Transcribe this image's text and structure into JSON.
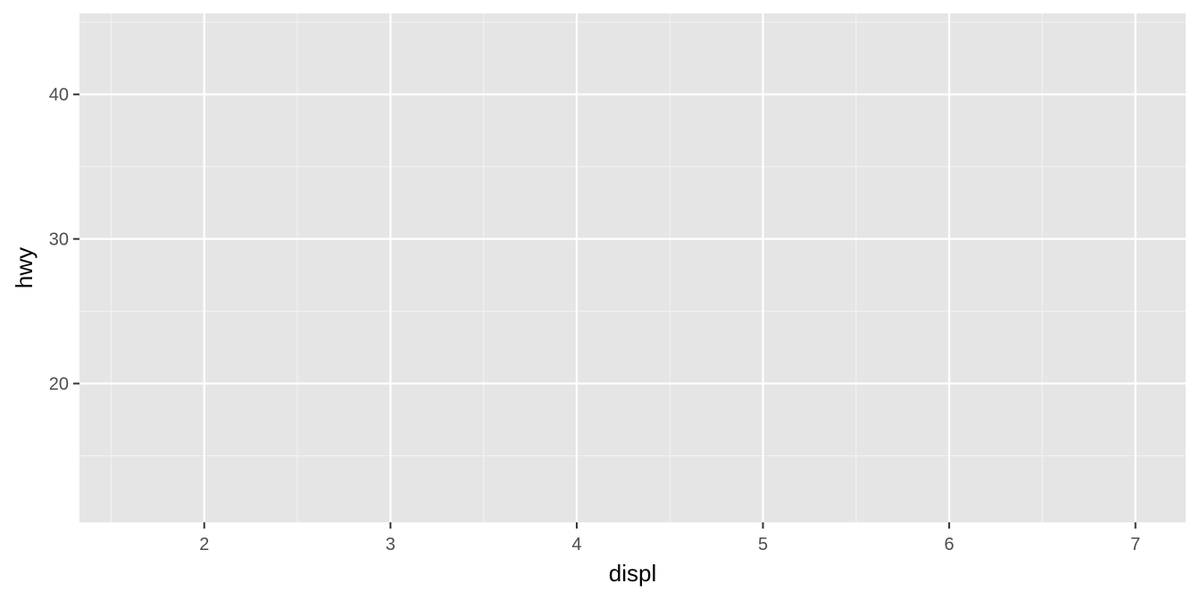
{
  "chart_data": {
    "type": "scatter",
    "title": "",
    "xlabel": "displ",
    "ylabel": "hwy",
    "xlim": [
      1.33,
      7.27
    ],
    "ylim": [
      10.4,
      45.6
    ],
    "x_ticks": [
      2,
      3,
      4,
      5,
      6,
      7
    ],
    "y_ticks": [
      20,
      30,
      40
    ],
    "x_minor_breaks": [
      1.5,
      2.5,
      3.5,
      4.5,
      5.5,
      6.5
    ],
    "y_minor_breaks": [
      15,
      25,
      35,
      45
    ],
    "grid": true,
    "legend": "none",
    "series": [],
    "colors": {
      "panel_background": "#e5e5e5",
      "grid_major": "#ffffff",
      "grid_minor": "#f2f2f2",
      "tick_label": "#4d4d4d",
      "axis_title": "#000000"
    }
  }
}
